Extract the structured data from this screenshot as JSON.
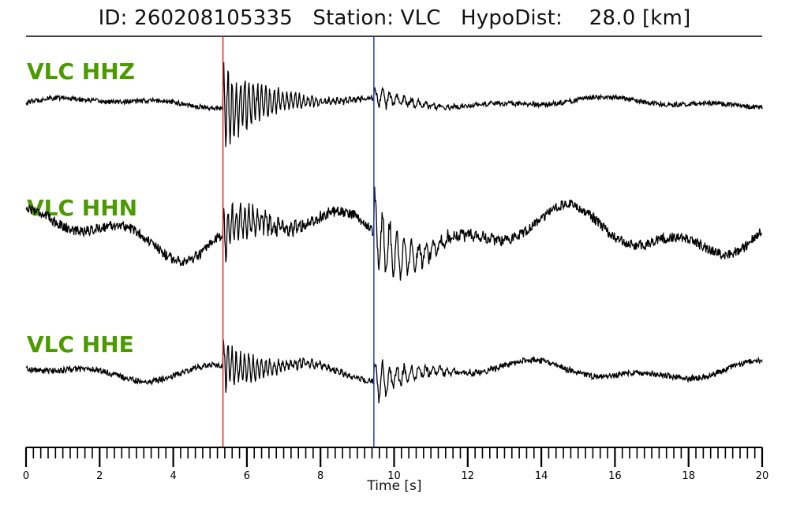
{
  "title": "ID: 260208105335   Station: VLC   HypoDist:    28.0 [km]",
  "chart_data": {
    "type": "line",
    "title": "ID: 260208105335   Station: VLC   HypoDist:    28.0 [km]",
    "xlabel": "Time [s]",
    "ylabel": "",
    "xlim": [
      0,
      20
    ],
    "x_ticks_major": [
      0,
      2,
      4,
      6,
      8,
      10,
      12,
      14,
      16,
      18,
      20
    ],
    "x_minor_step": 0.2,
    "grid": false,
    "markers": [
      {
        "name": "P pick",
        "time": 5.35,
        "color": "#e8262b"
      },
      {
        "name": "S pick",
        "time": 9.45,
        "color": "#1f3fd8"
      }
    ],
    "series": [
      {
        "name": "VLC HHZ",
        "label": "VLC HHZ",
        "p_onset": 5.35,
        "s_onset": 9.45,
        "noise": 0.05,
        "p_amp": 0.95,
        "s_amp": 0.25,
        "drift": 0.12
      },
      {
        "name": "VLC HHN",
        "label": "VLC HHN",
        "p_onset": 5.35,
        "s_onset": 9.45,
        "noise": 0.1,
        "p_amp": 0.55,
        "s_amp": 0.95,
        "drift": 0.55
      },
      {
        "name": "VLC HHE",
        "label": "VLC HHE",
        "p_onset": 5.35,
        "s_onset": 9.45,
        "noise": 0.07,
        "p_amp": 0.6,
        "s_amp": 0.55,
        "drift": 0.25
      }
    ]
  }
}
